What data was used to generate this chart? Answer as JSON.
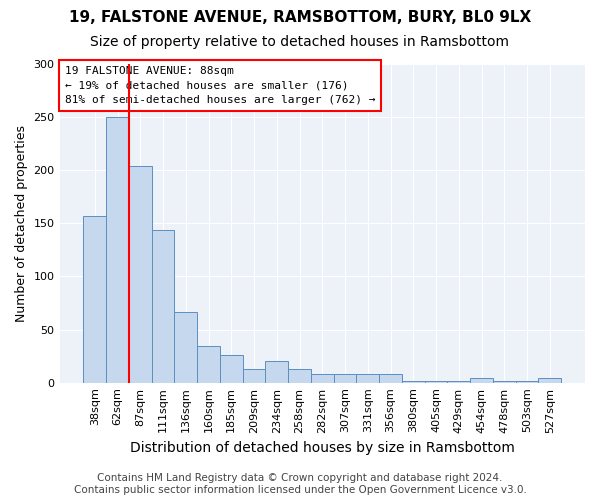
{
  "title1": "19, FALSTONE AVENUE, RAMSBOTTOM, BURY, BL0 9LX",
  "title2": "Size of property relative to detached houses in Ramsbottom",
  "xlabel": "Distribution of detached houses by size in Ramsbottom",
  "ylabel": "Number of detached properties",
  "categories": [
    "38sqm",
    "62sqm",
    "87sqm",
    "111sqm",
    "136sqm",
    "160sqm",
    "185sqm",
    "209sqm",
    "234sqm",
    "258sqm",
    "282sqm",
    "307sqm",
    "331sqm",
    "356sqm",
    "380sqm",
    "405sqm",
    "429sqm",
    "454sqm",
    "478sqm",
    "503sqm",
    "527sqm"
  ],
  "values": [
    157,
    250,
    204,
    144,
    67,
    35,
    26,
    13,
    20,
    13,
    8,
    8,
    8,
    8,
    2,
    2,
    2,
    4,
    2,
    2,
    4
  ],
  "bar_color": "#c5d8ed",
  "bar_edge_color": "#5a8fc0",
  "bg_color": "#edf2f8",
  "annotation_text": "19 FALSTONE AVENUE: 88sqm\n← 19% of detached houses are smaller (176)\n81% of semi-detached houses are larger (762) →",
  "annotation_box_color": "white",
  "annotation_box_edge_color": "red",
  "vline_color": "red",
  "ylim": [
    0,
    300
  ],
  "yticks": [
    0,
    50,
    100,
    150,
    200,
    250,
    300
  ],
  "footer": "Contains HM Land Registry data © Crown copyright and database right 2024.\nContains public sector information licensed under the Open Government Licence v3.0.",
  "title_fontsize": 11,
  "subtitle_fontsize": 10,
  "xlabel_fontsize": 10,
  "ylabel_fontsize": 9,
  "tick_fontsize": 8,
  "footer_fontsize": 7.5,
  "vline_bar_index": 2
}
